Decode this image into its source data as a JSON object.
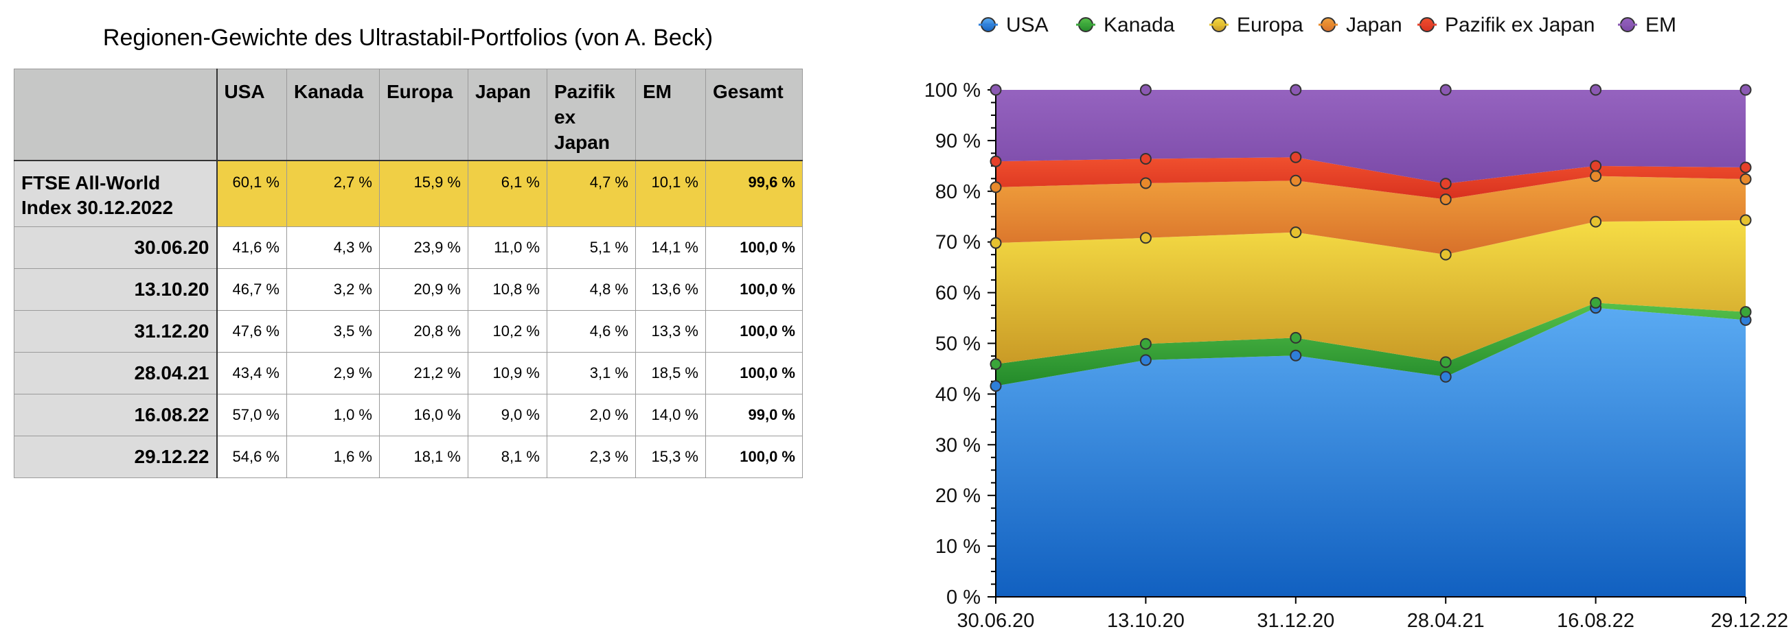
{
  "table": {
    "title": "Regionen-Gewichte des Ultrastabil-Portfolios (von A. Beck)",
    "headers": [
      "USA",
      "Kanada",
      "Europa",
      "Japan",
      "Pazifik ex Japan",
      "EM",
      "Gesamt"
    ],
    "ftse": {
      "label_line1": "FTSE All-World",
      "label_line2": "Index 30.12.2022",
      "values": [
        "60,1 %",
        "2,7 %",
        "15,9 %",
        "6,1 %",
        "4,7 %",
        "10,1 %",
        "99,6 %"
      ]
    },
    "rows": [
      {
        "date": "30.06.20",
        "values": [
          "41,6 %",
          "4,3 %",
          "23,9 %",
          "11,0 %",
          "5,1 %",
          "14,1 %",
          "100,0 %"
        ]
      },
      {
        "date": "13.10.20",
        "values": [
          "46,7 %",
          "3,2 %",
          "20,9 %",
          "10,8 %",
          "4,8 %",
          "13,6 %",
          "100,0 %"
        ]
      },
      {
        "date": "31.12.20",
        "values": [
          "47,6 %",
          "3,5 %",
          "20,8 %",
          "10,2 %",
          "4,6 %",
          "13,3 %",
          "100,0 %"
        ]
      },
      {
        "date": "28.04.21",
        "values": [
          "43,4 %",
          "2,9 %",
          "21,2 %",
          "10,9 %",
          "3,1 %",
          "18,5 %",
          "100,0 %"
        ]
      },
      {
        "date": "16.08.22",
        "values": [
          "57,0 %",
          "1,0 %",
          "16,0 %",
          "9,0 %",
          "2,0 %",
          "14,0 %",
          "99,0 %"
        ]
      },
      {
        "date": "29.12.22",
        "values": [
          "54,6 %",
          "1,6 %",
          "18,1 %",
          "8,1 %",
          "2,3 %",
          "15,3 %",
          "100,0 %"
        ]
      }
    ]
  },
  "chart_data": {
    "type": "area",
    "stacked": true,
    "categories": [
      "30.06.20",
      "13.10.20",
      "31.12.20",
      "28.04.21",
      "16.08.22",
      "29.12.22"
    ],
    "series": [
      {
        "name": "USA",
        "values": [
          41.6,
          46.7,
          47.6,
          43.4,
          57.0,
          54.6
        ],
        "color": "#2f7fd9"
      },
      {
        "name": "Kanada",
        "values": [
          4.3,
          3.2,
          3.5,
          2.9,
          1.0,
          1.6
        ],
        "color": "#3aa63a"
      },
      {
        "name": "Europa",
        "values": [
          23.9,
          20.9,
          20.8,
          21.2,
          16.0,
          18.1
        ],
        "color": "#e6c22f"
      },
      {
        "name": "Japan",
        "values": [
          11.0,
          10.8,
          10.2,
          10.9,
          9.0,
          8.1
        ],
        "color": "#e8892b"
      },
      {
        "name": "Pazifik ex Japan",
        "values": [
          5.1,
          4.8,
          4.6,
          3.1,
          2.0,
          2.3
        ],
        "color": "#e5412a"
      },
      {
        "name": "EM",
        "values": [
          14.1,
          13.6,
          13.3,
          18.5,
          14.0,
          15.3
        ],
        "color": "#8b59b3"
      }
    ],
    "y_ticks": [
      "0 %",
      "10 %",
      "20 %",
      "30 %",
      "40 %",
      "50 %",
      "60 %",
      "70 %",
      "80 %",
      "90 %",
      "100 %"
    ],
    "ylim": [
      0,
      100
    ],
    "legend": "top"
  }
}
